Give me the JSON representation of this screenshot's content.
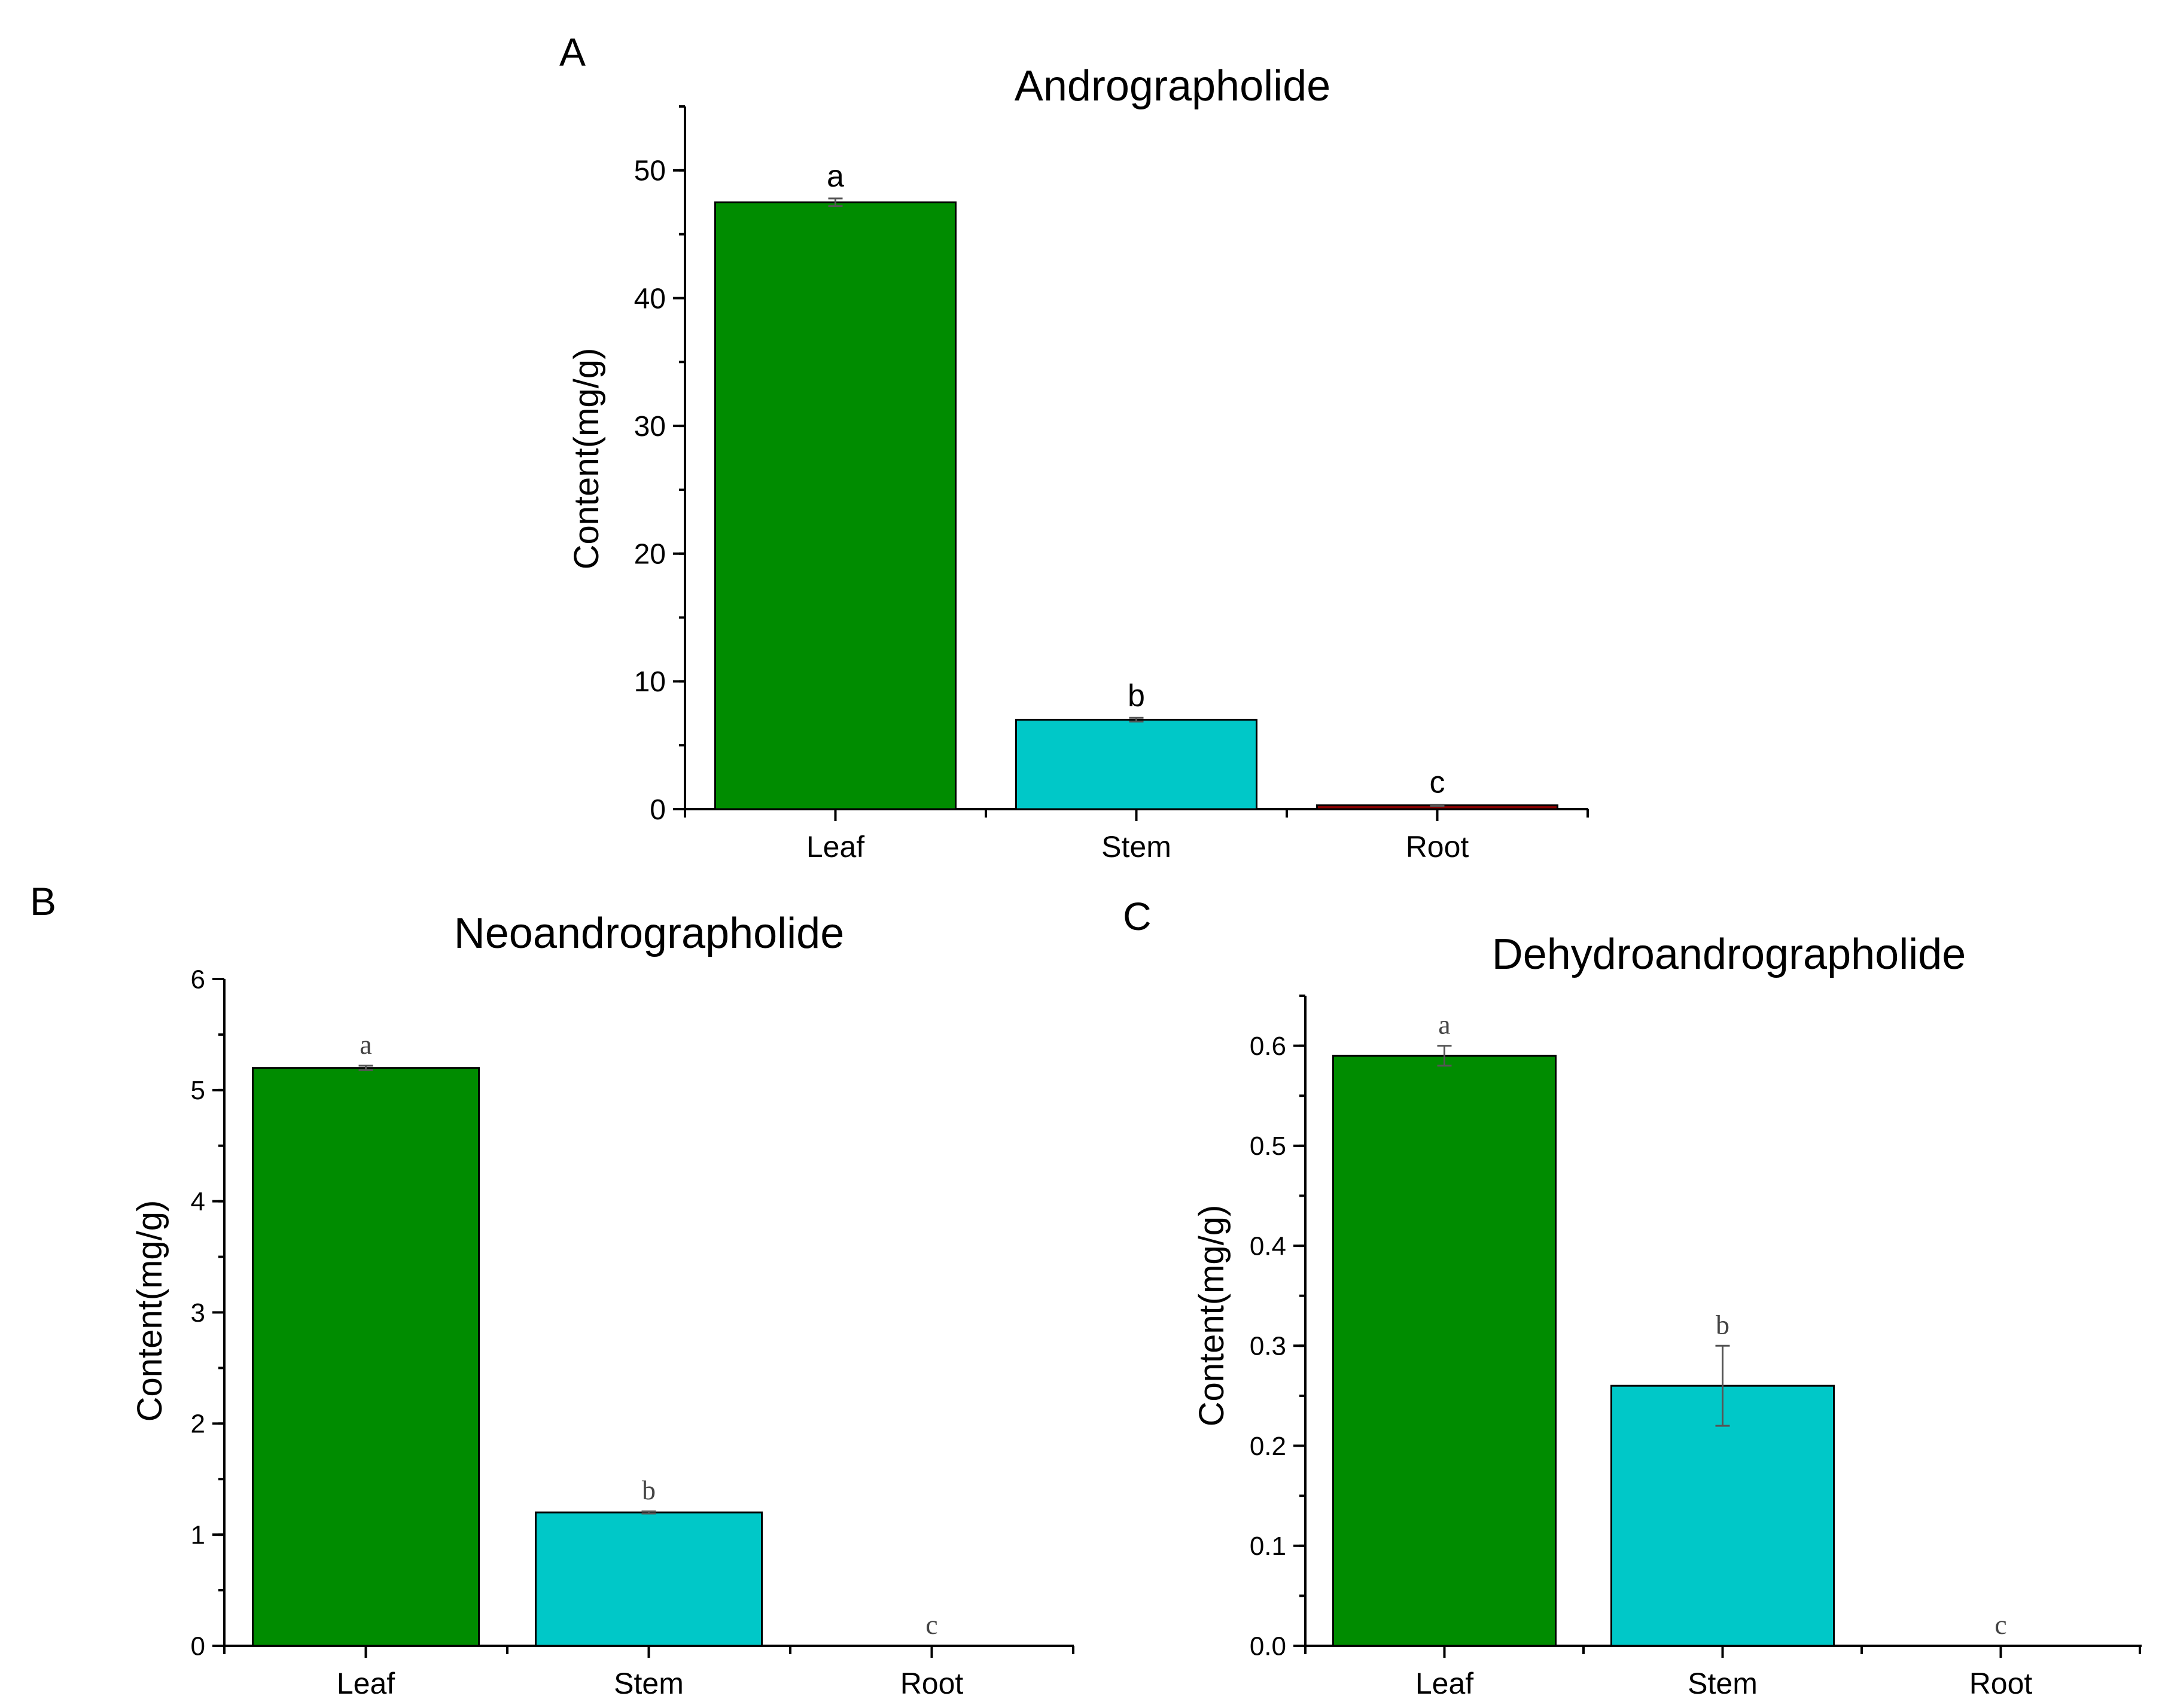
{
  "figure": {
    "background": "#ffffff",
    "colors": {
      "leaf": "#008c00",
      "stem": "#00c8c8",
      "root": "#8b0000",
      "axis": "#000000",
      "error_bar": "#555555"
    }
  },
  "chart_data": [
    {
      "panel": "A",
      "type": "bar",
      "title": "Andrographolide",
      "xlabel": "",
      "ylabel": "Content(mg/g)",
      "categories": [
        "Leaf",
        "Stem",
        "Root"
      ],
      "values": [
        47.5,
        7.0,
        0.3
      ],
      "errors": [
        0.3,
        0.15,
        0.05
      ],
      "significance": [
        "a",
        "b",
        "c"
      ],
      "ylim": [
        0,
        55
      ],
      "yticks": [
        0,
        10,
        20,
        30,
        40,
        50
      ],
      "ytick_labels": [
        "0",
        "10",
        "20",
        "30",
        "40",
        "50"
      ],
      "minor_step": 5,
      "bar_colors": [
        "#008c00",
        "#00c8c8",
        "#8b0000"
      ],
      "grid": false,
      "legend": "none"
    },
    {
      "panel": "B",
      "type": "bar",
      "title": "Neoandrographolide",
      "xlabel": "",
      "ylabel": "Content(mg/g)",
      "categories": [
        "Leaf",
        "Stem",
        "Root"
      ],
      "values": [
        5.2,
        1.2,
        0
      ],
      "errors": [
        0.02,
        0.01,
        0
      ],
      "significance": [
        "a",
        "b",
        "c"
      ],
      "ylim": [
        0,
        6
      ],
      "yticks": [
        0,
        1,
        2,
        3,
        4,
        5,
        6
      ],
      "ytick_labels": [
        "0",
        "1",
        "2",
        "3",
        "4",
        "5",
        "6"
      ],
      "minor_step": 0.5,
      "bar_colors": [
        "#008c00",
        "#00c8c8",
        "#8b0000"
      ],
      "grid": false,
      "legend": "none"
    },
    {
      "panel": "C",
      "type": "bar",
      "title": "Dehydroandrographolide",
      "xlabel": "",
      "ylabel": "Content(mg/g)",
      "categories": [
        "Leaf",
        "Stem",
        "Root"
      ],
      "values": [
        0.59,
        0.26,
        0
      ],
      "errors": [
        0.01,
        0.04,
        0
      ],
      "significance": [
        "a",
        "b",
        "c"
      ],
      "ylim": [
        0,
        0.65
      ],
      "yticks": [
        0,
        0.1,
        0.2,
        0.3,
        0.4,
        0.5,
        0.6
      ],
      "ytick_labels": [
        "0.0",
        "0.1",
        "0.2",
        "0.3",
        "0.4",
        "0.5",
        "0.6"
      ],
      "minor_step": 0.05,
      "bar_colors": [
        "#008c00",
        "#00c8c8",
        "#8b0000"
      ],
      "grid": false,
      "legend": "none"
    }
  ]
}
